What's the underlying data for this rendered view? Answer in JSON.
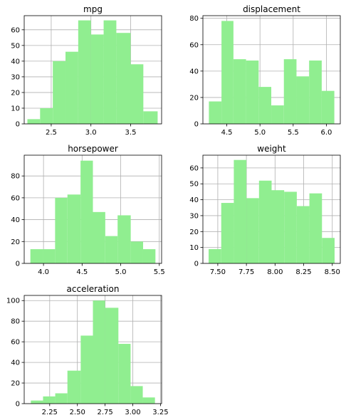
{
  "colors": {
    "bar": "#90ee90",
    "grid": "#b0b0b0",
    "axis": "#000000"
  },
  "chart_data": [
    {
      "type": "bar",
      "title": "mpg",
      "bin_edges": [
        2.2,
        2.36,
        2.52,
        2.68,
        2.84,
        3.0,
        3.16,
        3.32,
        3.5,
        3.66,
        3.84
      ],
      "counts": [
        3,
        10,
        40,
        46,
        66,
        57,
        66,
        58,
        38,
        8
      ],
      "xlim": [
        2.16,
        3.89
      ],
      "ylim": [
        0,
        69
      ],
      "xticks": [
        {
          "v": 2.5,
          "label": "2.5"
        },
        {
          "v": 3.0,
          "label": "3.0"
        },
        {
          "v": 3.5,
          "label": "3.5"
        }
      ],
      "yticks": [
        {
          "v": 0,
          "label": "0"
        },
        {
          "v": 10,
          "label": "10"
        },
        {
          "v": 20,
          "label": "20"
        },
        {
          "v": 30,
          "label": "30"
        },
        {
          "v": 40,
          "label": "40"
        },
        {
          "v": 50,
          "label": "50"
        },
        {
          "v": 60,
          "label": "60"
        }
      ],
      "grid": true
    },
    {
      "type": "bar",
      "title": "displacement",
      "bin_edges": [
        4.23,
        4.42,
        4.6,
        4.79,
        4.98,
        5.17,
        5.36,
        5.55,
        5.74,
        5.93,
        6.12
      ],
      "counts": [
        17,
        78,
        49,
        48,
        28,
        14,
        49,
        36,
        48,
        25
      ],
      "xlim": [
        4.14,
        6.21
      ],
      "ylim": [
        0,
        82
      ],
      "xticks": [
        {
          "v": 4.5,
          "label": "4.5"
        },
        {
          "v": 5.0,
          "label": "5.0"
        },
        {
          "v": 5.5,
          "label": "5.5"
        },
        {
          "v": 6.0,
          "label": "6.0"
        }
      ],
      "yticks": [
        {
          "v": 0,
          "label": "0"
        },
        {
          "v": 20,
          "label": "20"
        },
        {
          "v": 40,
          "label": "40"
        },
        {
          "v": 60,
          "label": "60"
        },
        {
          "v": 80,
          "label": "80"
        }
      ],
      "grid": true
    },
    {
      "type": "bar",
      "title": "horsepower",
      "bin_edges": [
        3.83,
        3.99,
        4.15,
        4.31,
        4.48,
        4.64,
        4.8,
        4.96,
        5.13,
        5.29,
        5.45
      ],
      "counts": [
        13,
        13,
        60,
        63,
        94,
        47,
        25,
        44,
        20,
        13
      ],
      "xlim": [
        3.75,
        5.53
      ],
      "ylim": [
        0,
        99
      ],
      "xticks": [
        {
          "v": 4.0,
          "label": "4.0"
        },
        {
          "v": 4.5,
          "label": "4.5"
        },
        {
          "v": 5.0,
          "label": "5.0"
        },
        {
          "v": 5.5,
          "label": "5.5"
        }
      ],
      "yticks": [
        {
          "v": 0,
          "label": "0"
        },
        {
          "v": 20,
          "label": "20"
        },
        {
          "v": 40,
          "label": "40"
        },
        {
          "v": 60,
          "label": "60"
        },
        {
          "v": 80,
          "label": "80"
        }
      ],
      "grid": true
    },
    {
      "type": "bar",
      "title": "weight",
      "bin_edges": [
        7.42,
        7.53,
        7.64,
        7.75,
        7.86,
        7.97,
        8.08,
        8.19,
        8.3,
        8.41,
        8.52
      ],
      "counts": [
        9,
        38,
        65,
        41,
        52,
        46,
        45,
        36,
        44,
        16
      ],
      "xlim": [
        7.37,
        8.57
      ],
      "ylim": [
        0,
        68
      ],
      "xticks": [
        {
          "v": 7.5,
          "label": "7.50"
        },
        {
          "v": 7.75,
          "label": "7.75"
        },
        {
          "v": 8.0,
          "label": "8.00"
        },
        {
          "v": 8.25,
          "label": "8.25"
        },
        {
          "v": 8.5,
          "label": "8.50"
        }
      ],
      "yticks": [
        {
          "v": 0,
          "label": "0"
        },
        {
          "v": 10,
          "label": "10"
        },
        {
          "v": 20,
          "label": "20"
        },
        {
          "v": 30,
          "label": "30"
        },
        {
          "v": 40,
          "label": "40"
        },
        {
          "v": 50,
          "label": "50"
        },
        {
          "v": 60,
          "label": "60"
        }
      ],
      "grid": true
    },
    {
      "type": "bar",
      "title": "acceleration",
      "bin_edges": [
        2.08,
        2.19,
        2.3,
        2.41,
        2.53,
        2.64,
        2.75,
        2.87,
        2.98,
        3.09,
        3.2
      ],
      "counts": [
        3,
        7,
        10,
        32,
        66,
        100,
        93,
        58,
        17,
        6
      ],
      "xlim": [
        2.02,
        3.26
      ],
      "ylim": [
        0,
        105
      ],
      "xticks": [
        {
          "v": 2.25,
          "label": "2.25"
        },
        {
          "v": 2.5,
          "label": "2.50"
        },
        {
          "v": 2.75,
          "label": "2.75"
        },
        {
          "v": 3.0,
          "label": "3.00"
        },
        {
          "v": 3.25,
          "label": "3.25"
        }
      ],
      "yticks": [
        {
          "v": 0,
          "label": "0"
        },
        {
          "v": 20,
          "label": "20"
        },
        {
          "v": 40,
          "label": "40"
        },
        {
          "v": 60,
          "label": "60"
        },
        {
          "v": 80,
          "label": "80"
        },
        {
          "v": 100,
          "label": "100"
        }
      ],
      "grid": true
    }
  ]
}
